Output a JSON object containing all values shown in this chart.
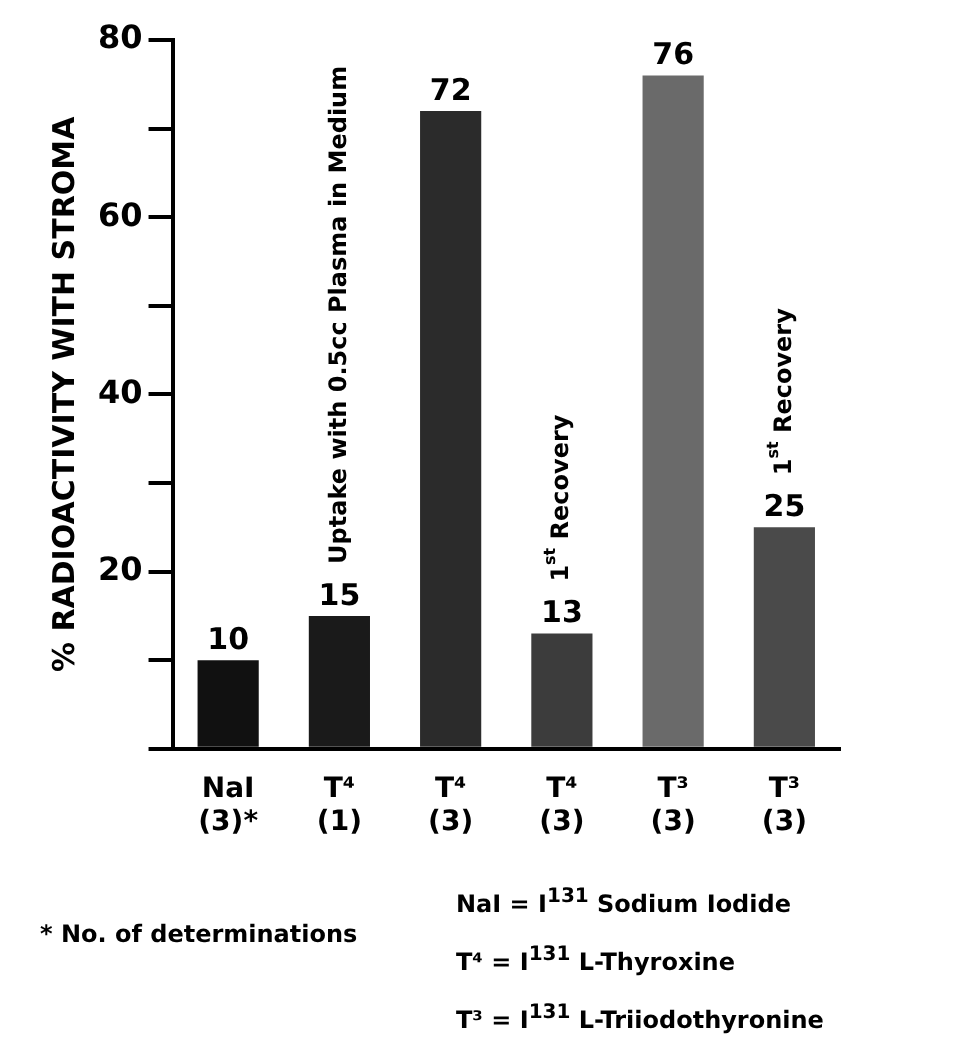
{
  "chart_data": {
    "type": "bar",
    "ylabel": "% RADIOACTIVITY WITH STROMA",
    "categories": [
      "NaI (3)*",
      "T⁴ (1)",
      "T⁴ (3)",
      "T⁴ (3)",
      "T³ (3)",
      "T³ (3)"
    ],
    "values": [
      10,
      15,
      72,
      13,
      76,
      25
    ],
    "colors": [
      "#111111",
      "#1a1a1a",
      "#2b2b2b",
      "#3c3c3c",
      "#6a6a6a",
      "#4a4a4a"
    ],
    "ylim": [
      0,
      80
    ],
    "yticks": [
      {
        "value": 0,
        "label": null
      },
      {
        "value": 10,
        "label": null
      },
      20,
      {
        "value": 30,
        "label": null
      },
      40,
      {
        "value": 50,
        "label": null
      },
      60,
      {
        "value": 70,
        "label": null
      },
      80
    ],
    "data_labels": true,
    "grid": false,
    "legend": false,
    "annotations": [
      "Uptake with 0.5cc Plasma in Medium",
      "1$^{st}$ Recovery",
      "1$^{st}$ Recovery",
      "* No. of determinations",
      "NaI = I$^{131}$ Sodium Iodide",
      "T⁴ = I$^{131}$ L-Thyroxine",
      "T³ = I$^{131}$ L-Triiodothyronine"
    ]
  }
}
